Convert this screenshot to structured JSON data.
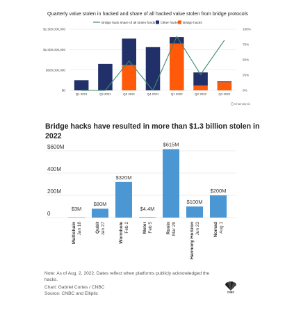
{
  "colors": {
    "navy": "#22306a",
    "orange": "#ff5a0a",
    "green_line": "#3f8a6a",
    "blue": "#4a97d3",
    "grid": "#dcdcdc"
  },
  "chart_data": [
    {
      "type": "bar",
      "stacked": true,
      "title": "Quarterly value stolen in hacked and share of all hacked value stolen from bridge protocols",
      "categories": [
        "Q1 2021",
        "Q2 2021",
        "Q3 2021",
        "Q4 2021",
        "Q1 2022",
        "Q2 2022",
        "Q3 2022"
      ],
      "series": [
        {
          "name": "Bridge hacks",
          "values": [
            0,
            0,
            620000000,
            0,
            1150000000,
            120000000,
            200000000
          ]
        },
        {
          "name": "Other hacks",
          "values": [
            250000000,
            650000000,
            650000000,
            1060000000,
            160000000,
            320000000,
            20000000
          ]
        },
        {
          "name": "Bridge hack share of all stolen funds",
          "axis": "right",
          "values": [
            0,
            0,
            48,
            0,
            88,
            26,
            82
          ]
        }
      ],
      "y_ticks": [
        "$1,500,000,000",
        "$1,000,000,000",
        "$500,000,000",
        "$0"
      ],
      "y2_ticks": [
        "100%",
        "75%",
        "50%",
        "25%",
        "0%"
      ],
      "ylim": [
        0,
        1500000000
      ],
      "y2lim": [
        0,
        100
      ],
      "legend": [
        "Bridge hack share of all stolen funds",
        "Other hacks",
        "Bridge hacks"
      ],
      "legend_position": "top",
      "credit": "Chainalysis"
    },
    {
      "type": "bar",
      "title": "Bridge hacks have resulted in more than $1.3 billion stolen in 2022",
      "categories": [
        "Multichain",
        "Qubit",
        "Wormhole",
        "Meter",
        "Ronin",
        "Harmony Horizon",
        "Nomad"
      ],
      "dates": [
        "Jan 18",
        "Jan 27",
        "Feb 2",
        "Feb 5",
        "Mar 29",
        "Jun 23",
        "Aug 1"
      ],
      "values": [
        3,
        80,
        320,
        4.4,
        615,
        100,
        200
      ],
      "value_labels": [
        "$3M",
        "$80M",
        "$320M",
        "$4.4M",
        "$615M",
        "$100M",
        "$200M"
      ],
      "y_ticks": [
        "$600M",
        "400M",
        "200M",
        "0"
      ],
      "ylim": [
        0,
        650
      ],
      "note": "Note: As of Aug. 2, 2022. Dates reflect when platforms publicly acknowledged the hacks.",
      "chart_credit": "Chart: Gabriel Cortes / CNBC",
      "source": "Source: CNBC and Elliptic"
    }
  ]
}
